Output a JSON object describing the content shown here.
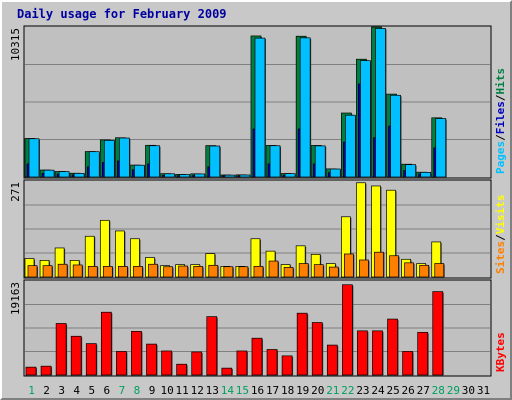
{
  "colors": {
    "background": "#c0c0c0",
    "frame": "#c8c8c8",
    "title_text": "#0000a0",
    "hits": "#008040",
    "files": "#0000c0",
    "pages": "#00c0ff",
    "visits": "#ffff00",
    "sites": "#ff8000",
    "kbytes": "#ff0000",
    "weekend_day": "#00a060",
    "weekday_day": "#000000",
    "gridline": "#808080"
  },
  "chart_data": {
    "type": "bar",
    "title": "Daily usage for February 2009",
    "x": [
      1,
      2,
      3,
      4,
      5,
      6,
      7,
      8,
      9,
      10,
      11,
      12,
      13,
      14,
      15,
      16,
      17,
      18,
      19,
      20,
      21,
      22,
      23,
      24,
      25,
      26,
      27,
      28,
      29,
      30,
      31
    ],
    "weekend_days": [
      1,
      7,
      8,
      14,
      15,
      21,
      22,
      28,
      29
    ],
    "panels": [
      {
        "id": "hits_files_pages",
        "ymax_label": "10315",
        "ymax": 10315,
        "legend": [
          {
            "text": "Hits",
            "color": "#008040"
          },
          {
            "text": "/",
            "color": "#000000"
          },
          {
            "text": "Files",
            "color": "#0000c0"
          },
          {
            "text": "/",
            "color": "#000000"
          },
          {
            "text": "Pages",
            "color": "#00c0ff"
          }
        ],
        "series": [
          {
            "name": "Hits",
            "color": "#008040",
            "values": [
              2650,
              480,
              380,
              260,
              1750,
              2550,
              2700,
              820,
              2180,
              230,
              180,
              220,
              2160,
              140,
              150,
              9700,
              2170,
              240,
              9680,
              2170,
              560,
              4400,
              8100,
              10310,
              5700,
              880,
              330,
              4070,
              0,
              0,
              0
            ]
          },
          {
            "name": "Files",
            "color": "#0000c0",
            "values": [
              900,
              250,
              200,
              150,
              700,
              1000,
              1100,
              500,
              900,
              120,
              100,
              120,
              700,
              80,
              90,
              3300,
              900,
              130,
              3300,
              900,
              300,
              2400,
              6400,
              2700,
              3500,
              450,
              200,
              2000,
              0,
              0,
              0
            ]
          },
          {
            "name": "Pages",
            "color": "#00c0ff",
            "values": [
              2630,
              470,
              370,
              250,
              1740,
              2520,
              2680,
              810,
              2150,
              220,
              170,
              210,
              2130,
              130,
              140,
              9550,
              2150,
              230,
              9570,
              2140,
              550,
              4250,
              8000,
              10210,
              5620,
              850,
              320,
              4020,
              0,
              0,
              0
            ]
          }
        ]
      },
      {
        "id": "visits_sites",
        "ymax_label": "271",
        "ymax": 271,
        "legend": [
          {
            "text": "Visits",
            "color": "#ffff00"
          },
          {
            "text": "/",
            "color": "#000000"
          },
          {
            "text": "Sites",
            "color": "#ff8000"
          }
        ],
        "series": [
          {
            "name": "Visits",
            "color": "#ffff00",
            "values": [
              52,
              47,
              82,
              47,
              115,
              160,
              130,
              108,
              55,
              32,
              35,
              35,
              66,
              30,
              30,
              108,
              73,
              35,
              88,
              64,
              38,
              170,
              266,
              257,
              245,
              50,
              38,
              99,
              0,
              0,
              0
            ]
          },
          {
            "name": "Sites",
            "color": "#ff8000",
            "values": [
              32,
              32,
              36,
              34,
              30,
              30,
              30,
              30,
              36,
              29,
              31,
              30,
              33,
              29,
              29,
              30,
              45,
              27,
              38,
              35,
              28,
              65,
              48,
              70,
              60,
              40,
              33,
              38,
              0,
              0,
              0
            ]
          }
        ]
      },
      {
        "id": "kbytes",
        "ymax_label": "19163",
        "ymax": 19163,
        "legend": [
          {
            "text": "KBytes",
            "color": "#ff0000"
          }
        ],
        "series": [
          {
            "name": "KBytes",
            "color": "#ff0000",
            "values": [
              1600,
              1800,
              10500,
              7900,
              6400,
              12800,
              4800,
              8900,
              6300,
              4900,
              2200,
              4700,
              11900,
              1400,
              4900,
              7500,
              5200,
              3900,
              12600,
              10700,
              6100,
              18400,
              9000,
              9000,
              11400,
              4800,
              8700,
              17000,
              0,
              0,
              0
            ]
          }
        ]
      }
    ]
  }
}
